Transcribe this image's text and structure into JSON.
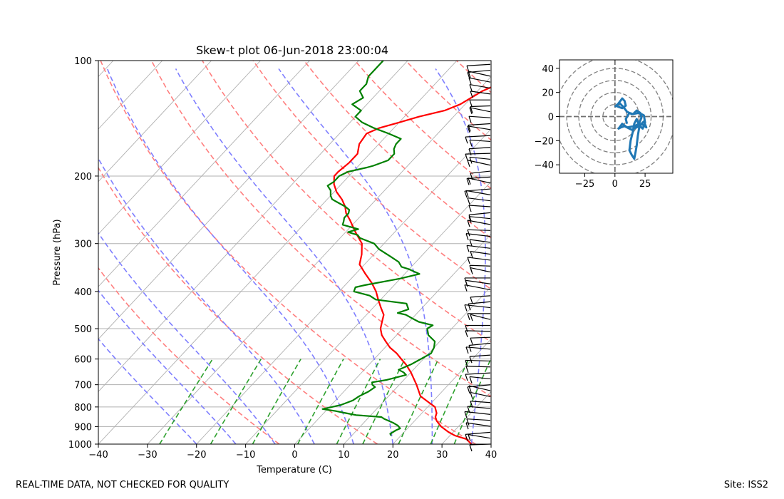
{
  "chart_data": [
    {
      "type": "line",
      "chart_kind": "skew-t log-p diagram",
      "title": "Skew-t plot 06-Jun-2018 23:00:04",
      "xlabel": "Temperature (C)",
      "ylabel": "Pressure (hPa)",
      "xlim": [
        -40,
        40
      ],
      "ylim": [
        1000,
        100
      ],
      "y_scale": "log",
      "x_ticks": [
        -40,
        -30,
        -20,
        -10,
        0,
        10,
        20,
        30,
        40
      ],
      "y_ticks": [
        100,
        200,
        300,
        400,
        500,
        600,
        700,
        800,
        900,
        1000
      ],
      "grid": true,
      "colors": {
        "temperature": "#ff0000",
        "dewpoint": "#008000",
        "dry_adiabats": "#ff7f7f",
        "moist_adiabats": "#7f7fff",
        "mixing_ratio": "#2ca02c",
        "isotherms": "#b0b0b0",
        "wind_barbs": "#000000"
      },
      "series": [
        {
          "name": "Temperature",
          "points": [
            [
              1000,
              36
            ],
            [
              970,
              34
            ],
            [
              950,
              31
            ],
            [
              930,
              29
            ],
            [
              900,
              26.5
            ],
            [
              870,
              24.5
            ],
            [
              850,
              23.5
            ],
            [
              830,
              23
            ],
            [
              800,
              21.5
            ],
            [
              780,
              19.5
            ],
            [
              750,
              16.5
            ],
            [
              700,
              13.5
            ],
            [
              650,
              10
            ],
            [
              620,
              7.5
            ],
            [
              600,
              5.5
            ],
            [
              580,
              3.5
            ],
            [
              560,
              1
            ],
            [
              540,
              -1
            ],
            [
              520,
              -3
            ],
            [
              500,
              -4.5
            ],
            [
              480,
              -5.5
            ],
            [
              460,
              -6.5
            ],
            [
              440,
              -8.5
            ],
            [
              420,
              -10.5
            ],
            [
              400,
              -12.5
            ],
            [
              380,
              -15
            ],
            [
              360,
              -18
            ],
            [
              340,
              -21
            ],
            [
              320,
              -22.5
            ],
            [
              300,
              -24.5
            ],
            [
              280,
              -28
            ],
            [
              260,
              -31.5
            ],
            [
              250,
              -33.5
            ],
            [
              240,
              -35
            ],
            [
              230,
              -37
            ],
            [
              220,
              -39.5
            ],
            [
              210,
              -41.5
            ],
            [
              200,
              -43
            ],
            [
              195,
              -43
            ],
            [
              185,
              -42.5
            ],
            [
              175,
              -42.5
            ],
            [
              165,
              -44
            ],
            [
              155,
              -44.5
            ],
            [
              150,
              -43
            ],
            [
              145,
              -40
            ],
            [
              140,
              -37
            ],
            [
              135,
              -33
            ],
            [
              130,
              -31
            ],
            [
              125,
              -30
            ],
            [
              120,
              -29
            ],
            [
              115,
              -27
            ],
            [
              110,
              -25
            ],
            [
              105,
              -23
            ],
            [
              100,
              -22
            ]
          ]
        },
        {
          "name": "Dewpoint",
          "points": [
            [
              950,
              18
            ],
            [
              940,
              17.5
            ],
            [
              920,
              18
            ],
            [
              910,
              18.5
            ],
            [
              895,
              17.5
            ],
            [
              880,
              16
            ],
            [
              860,
              13.5
            ],
            [
              850,
              12.5
            ],
            [
              840,
              7
            ],
            [
              830,
              4.5
            ],
            [
              820,
              2
            ],
            [
              810,
              -1
            ],
            [
              800,
              0.5
            ],
            [
              790,
              2
            ],
            [
              770,
              3.5
            ],
            [
              750,
              4
            ],
            [
              730,
              5
            ],
            [
              710,
              5.5
            ],
            [
              700,
              4.5
            ],
            [
              690,
              4
            ],
            [
              680,
              6.5
            ],
            [
              670,
              8
            ],
            [
              660,
              9.5
            ],
            [
              650,
              8.5
            ],
            [
              640,
              7
            ],
            [
              620,
              8.5
            ],
            [
              600,
              9.5
            ],
            [
              580,
              10.5
            ],
            [
              560,
              10
            ],
            [
              540,
              9
            ],
            [
              520,
              6.5
            ],
            [
              500,
              5
            ],
            [
              490,
              5.5
            ],
            [
              480,
              2
            ],
            [
              470,
              0
            ],
            [
              460,
              -2
            ],
            [
              455,
              -4
            ],
            [
              445,
              -2.5
            ],
            [
              440,
              -3
            ],
            [
              430,
              -4
            ],
            [
              420,
              -11
            ],
            [
              410,
              -13
            ],
            [
              400,
              -17
            ],
            [
              390,
              -17.5
            ],
            [
              385,
              -16
            ],
            [
              375,
              -12
            ],
            [
              370,
              -10
            ],
            [
              360,
              -7
            ],
            [
              350,
              -10
            ],
            [
              345,
              -12
            ],
            [
              335,
              -13.5
            ],
            [
              325,
              -16
            ],
            [
              310,
              -20
            ],
            [
              300,
              -22
            ],
            [
              290,
              -26
            ],
            [
              285,
              -27
            ],
            [
              280,
              -29.5
            ],
            [
              275,
              -28
            ],
            [
              268,
              -32
            ],
            [
              262,
              -32.5
            ],
            [
              257,
              -33
            ],
            [
              250,
              -33
            ],
            [
              245,
              -33.5
            ],
            [
              240,
              -35
            ],
            [
              235,
              -37
            ],
            [
              230,
              -39
            ],
            [
              225,
              -40
            ],
            [
              218,
              -41
            ],
            [
              212,
              -42.5
            ],
            [
              207,
              -42
            ],
            [
              200,
              -42
            ],
            [
              195,
              -41
            ],
            [
              190,
              -38
            ],
            [
              188,
              -37
            ],
            [
              182,
              -35
            ],
            [
              175,
              -35
            ],
            [
              170,
              -36
            ],
            [
              165,
              -36.5
            ],
            [
              160,
              -36.5
            ],
            [
              155,
              -40
            ],
            [
              150,
              -44
            ],
            [
              145,
              -47.5
            ],
            [
              140,
              -50
            ],
            [
              135,
              -50
            ],
            [
              130,
              -53
            ],
            [
              125,
              -52
            ],
            [
              120,
              -54
            ],
            [
              115,
              -54
            ],
            [
              110,
              -55
            ],
            [
              105,
              -55
            ],
            [
              100,
              -55
            ]
          ]
        }
      ],
      "wind_barbs_present": true,
      "reference_lines": [
        "dry adiabats",
        "moist adiabats",
        "mixing ratio lines",
        "skewed isotherms"
      ]
    },
    {
      "type": "line",
      "chart_kind": "hodograph",
      "xlim": [
        -46,
        48
      ],
      "ylim": [
        -47,
        47
      ],
      "x_ticks": [
        -25,
        0,
        25
      ],
      "y_ticks": [
        -40,
        -20,
        0,
        20,
        40
      ],
      "rings": [
        10,
        20,
        30,
        40,
        50
      ],
      "color": "#1f77b4",
      "points": [
        [
          0,
          8
        ],
        [
          3,
          11
        ],
        [
          6,
          15
        ],
        [
          8,
          13
        ],
        [
          9,
          9
        ],
        [
          6,
          7
        ],
        [
          3,
          8
        ],
        [
          1,
          9
        ],
        [
          4,
          11
        ],
        [
          7,
          8
        ],
        [
          10,
          4
        ],
        [
          14,
          2
        ],
        [
          20,
          3
        ],
        [
          24,
          1
        ],
        [
          25,
          -5
        ],
        [
          23,
          -10
        ],
        [
          20,
          -7
        ],
        [
          18,
          -2
        ],
        [
          16,
          -6
        ],
        [
          15,
          -12
        ],
        [
          13,
          -20
        ],
        [
          12,
          -28
        ],
        [
          14,
          -32
        ],
        [
          16,
          -35
        ],
        [
          17,
          -30
        ],
        [
          18,
          -24
        ],
        [
          19,
          -16
        ],
        [
          20,
          -10
        ],
        [
          22,
          -6
        ],
        [
          26,
          -9
        ],
        [
          24,
          -4
        ],
        [
          20,
          -8
        ],
        [
          14,
          -11
        ],
        [
          8,
          -8
        ],
        [
          5,
          -9
        ],
        [
          3,
          -10
        ],
        [
          6,
          -6
        ],
        [
          10,
          -9
        ],
        [
          16,
          -8
        ],
        [
          20,
          -6
        ],
        [
          22,
          -1
        ],
        [
          21,
          3
        ],
        [
          18,
          5
        ],
        [
          15,
          2
        ],
        [
          12,
          3
        ],
        [
          9,
          -2
        ],
        [
          10,
          -6
        ]
      ]
    }
  ],
  "footer": {
    "left": "REAL-TIME DATA, NOT CHECKED FOR QUALITY",
    "right": "Site: ISS2"
  }
}
